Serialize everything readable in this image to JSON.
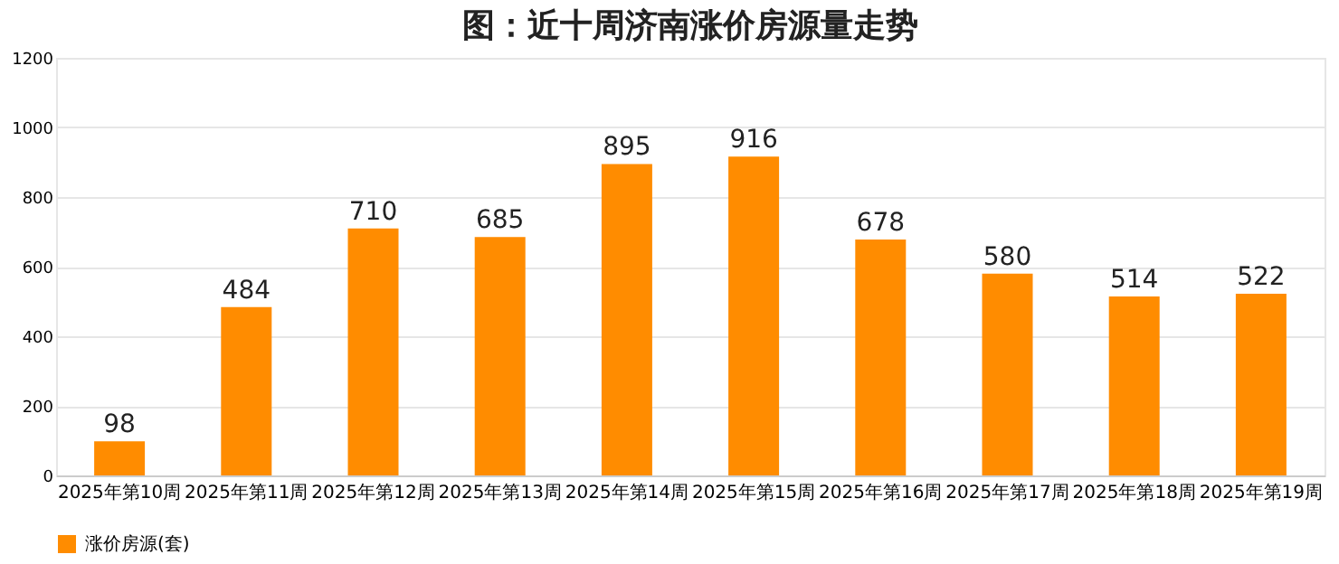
{
  "chart_data": {
    "type": "bar",
    "title": "图：近十周济南涨价房源量走势",
    "categories": [
      "2025年第10周",
      "2025年第11周",
      "2025年第12周",
      "2025年第13周",
      "2025年第14周",
      "2025年第15周",
      "2025年第16周",
      "2025年第17周",
      "2025年第18周",
      "2025年第19周"
    ],
    "series": [
      {
        "name": "涨价房源(套)",
        "color": "#ff8c00",
        "values": [
          98,
          484,
          710,
          685,
          895,
          916,
          678,
          580,
          514,
          522
        ]
      }
    ],
    "ylim": [
      0,
      1200
    ],
    "yticks": [
      0,
      200,
      400,
      600,
      800,
      1000,
      1200
    ],
    "grid": "y",
    "legend": "bottom",
    "data_labels": true
  }
}
